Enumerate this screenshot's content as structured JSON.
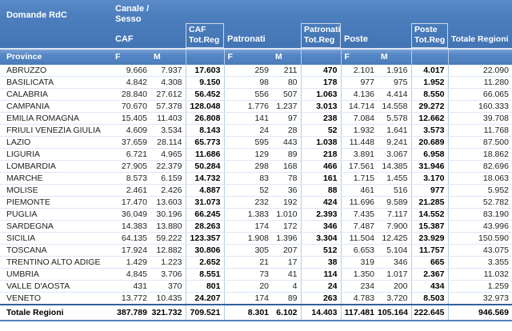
{
  "title": "Domande RdC",
  "header": {
    "canale_sesso": "Canale /\nSesso",
    "caf": "CAF",
    "patronati": "Patronati",
    "poste": "Poste",
    "caf_totreg": "CAF\nTot.Reg",
    "patronati_totreg": "Patronati\nTot.Reg",
    "poste_totreg": "Poste\nTot.Reg",
    "totale_regioni": "Totale Regioni",
    "province": "Province",
    "f": "F",
    "m": "M"
  },
  "colors": {
    "header_blue": "#4d7fbe",
    "box_border": "#ccd8e8",
    "column_border": "#b7cde7",
    "row_line": "#dbe7f5",
    "total_top_border": "#31609b",
    "total_bottom_border": "#4f81bd"
  },
  "chart_data": {
    "type": "table",
    "title": "Domande RdC",
    "columns": [
      "Province",
      "CAF F",
      "CAF M",
      "CAF Tot.Reg",
      "Patronati F",
      "Patronati M",
      "Patronati Tot.Reg",
      "Poste F",
      "Poste M",
      "Poste Tot.Reg",
      "Totale Regioni"
    ],
    "rows_ref": "rows",
    "total_ref": "total_row"
  },
  "rows": [
    {
      "name": "ABRUZZO",
      "values": [
        "9.666",
        "7.937",
        "17.603",
        "259",
        "211",
        "470",
        "2.101",
        "1.916",
        "4.017",
        "22.090"
      ]
    },
    {
      "name": "BASILICATA",
      "values": [
        "4.842",
        "4.308",
        "9.150",
        "98",
        "80",
        "178",
        "977",
        "975",
        "1.952",
        "11.280"
      ]
    },
    {
      "name": "CALABRIA",
      "values": [
        "28.840",
        "27.612",
        "56.452",
        "556",
        "507",
        "1.063",
        "4.136",
        "4.414",
        "8.550",
        "66.065"
      ]
    },
    {
      "name": "CAMPANIA",
      "values": [
        "70.670",
        "57.378",
        "128.048",
        "1.776",
        "1.237",
        "3.013",
        "14.714",
        "14.558",
        "29.272",
        "160.333"
      ]
    },
    {
      "name": "EMILIA ROMAGNA",
      "values": [
        "15.405",
        "11.403",
        "26.808",
        "141",
        "97",
        "238",
        "7.084",
        "5.578",
        "12.662",
        "39.708"
      ]
    },
    {
      "name": "FRIULI VENEZIA GIULIA",
      "values": [
        "4.609",
        "3.534",
        "8.143",
        "24",
        "28",
        "52",
        "1.932",
        "1.641",
        "3.573",
        "11.768"
      ]
    },
    {
      "name": "LAZIO",
      "values": [
        "37.659",
        "28.114",
        "65.773",
        "595",
        "443",
        "1.038",
        "11.448",
        "9.241",
        "20.689",
        "87.500"
      ]
    },
    {
      "name": "LIGURIA",
      "values": [
        "6.721",
        "4.965",
        "11.686",
        "129",
        "89",
        "218",
        "3.891",
        "3.067",
        "6.958",
        "18.862"
      ]
    },
    {
      "name": "LOMBARDIA",
      "values": [
        "27.905",
        "22.379",
        "50.284",
        "298",
        "168",
        "466",
        "17.561",
        "14.385",
        "31.946",
        "82.696"
      ]
    },
    {
      "name": "MARCHE",
      "values": [
        "8.573",
        "6.159",
        "14.732",
        "83",
        "78",
        "161",
        "1.715",
        "1.455",
        "3.170",
        "18.063"
      ]
    },
    {
      "name": "MOLISE",
      "values": [
        "2.461",
        "2.426",
        "4.887",
        "52",
        "36",
        "88",
        "461",
        "516",
        "977",
        "5.952"
      ]
    },
    {
      "name": "PIEMONTE",
      "values": [
        "17.470",
        "13.603",
        "31.073",
        "232",
        "192",
        "424",
        "11.696",
        "9.589",
        "21.285",
        "52.782"
      ]
    },
    {
      "name": "PUGLIA",
      "values": [
        "36.049",
        "30.196",
        "66.245",
        "1.383",
        "1.010",
        "2.393",
        "7.435",
        "7.117",
        "14.552",
        "83.190"
      ]
    },
    {
      "name": "SARDEGNA",
      "values": [
        "14.383",
        "13.880",
        "28.263",
        "174",
        "172",
        "346",
        "7.487",
        "7.900",
        "15.387",
        "43.996"
      ]
    },
    {
      "name": "SICILIA",
      "values": [
        "64.135",
        "59.222",
        "123.357",
        "1.908",
        "1.396",
        "3.304",
        "11.504",
        "12.425",
        "23.929",
        "150.590"
      ]
    },
    {
      "name": "TOSCANA",
      "values": [
        "17.924",
        "12.882",
        "30.806",
        "305",
        "207",
        "512",
        "6.653",
        "5.104",
        "11.757",
        "43.075"
      ]
    },
    {
      "name": "TRENTINO ALTO ADIGE",
      "values": [
        "1.429",
        "1.223",
        "2.652",
        "21",
        "17",
        "38",
        "319",
        "346",
        "665",
        "3.355"
      ]
    },
    {
      "name": "UMBRIA",
      "values": [
        "4.845",
        "3.706",
        "8.551",
        "73",
        "41",
        "114",
        "1.350",
        "1.017",
        "2.367",
        "11.032"
      ]
    },
    {
      "name": "VALLE D'AOSTA",
      "values": [
        "431",
        "370",
        "801",
        "20",
        "4",
        "24",
        "234",
        "200",
        "434",
        "1.259"
      ]
    },
    {
      "name": "VENETO",
      "values": [
        "13.772",
        "10.435",
        "24.207",
        "174",
        "89",
        "263",
        "4.783",
        "3.720",
        "8.503",
        "32.973"
      ]
    }
  ],
  "total_row": {
    "label": "Totale Regioni",
    "values": [
      "387.789",
      "321.732",
      "709.521",
      "8.301",
      "6.102",
      "14.403",
      "117.481",
      "105.164",
      "222.645",
      "946.569"
    ]
  }
}
